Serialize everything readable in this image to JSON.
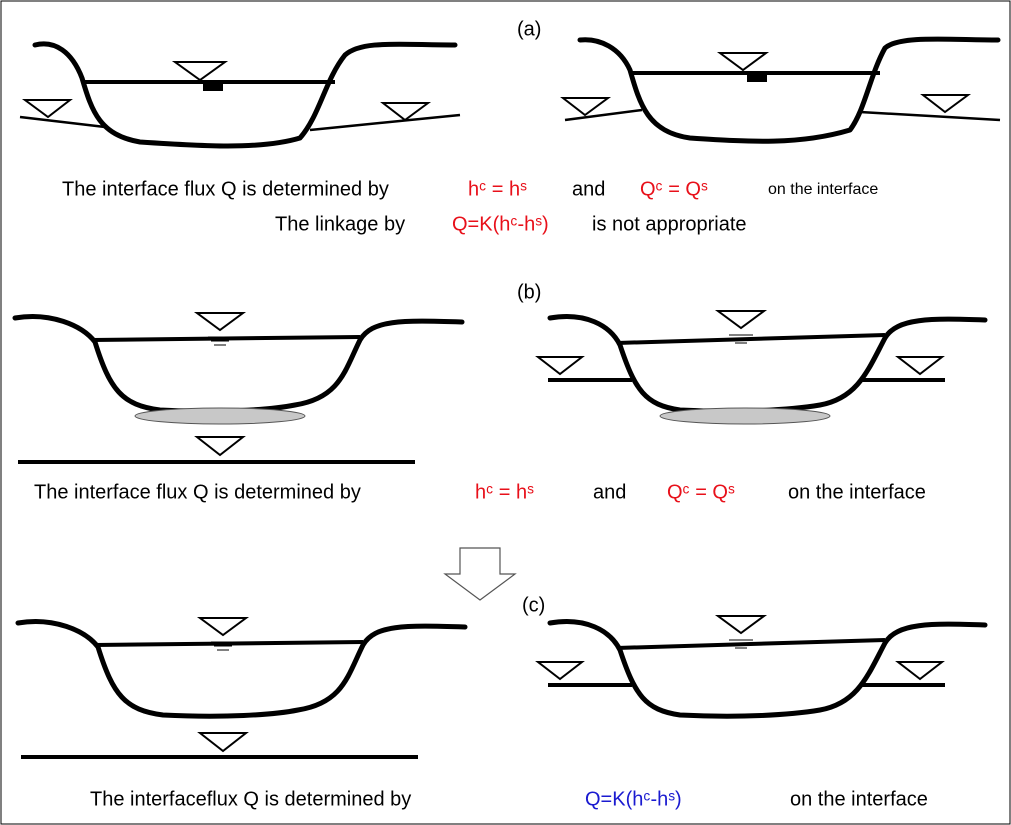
{
  "panels": [
    {
      "label": "(a)",
      "caption": [
        [
          {
            "text": "The interface flux Q is determined by",
            "color": "#000000"
          },
          {
            "text": "hᶜ = hˢ",
            "color": "#e8101a"
          },
          {
            "text": "and",
            "color": "#000000"
          },
          {
            "text": "Qᶜ = Qˢ",
            "color": "#e8101a"
          },
          {
            "text": "on the interface",
            "color": "#000000"
          }
        ],
        [
          {
            "text": "The linkage by",
            "color": "#000000"
          },
          {
            "text": "Q=K(hᶜ-hˢ)",
            "color": "#e8101a"
          },
          {
            "text": "is not appropriate",
            "color": "#000000"
          }
        ]
      ]
    },
    {
      "label": "(b)",
      "caption": [
        [
          {
            "text": "The interface flux Q is determined by",
            "color": "#000000"
          },
          {
            "text": "hᶜ = hˢ",
            "color": "#e8101a"
          },
          {
            "text": "and",
            "color": "#000000"
          },
          {
            "text": "Qᶜ = Qˢ",
            "color": "#e8101a"
          },
          {
            "text": "on the interface",
            "color": "#000000"
          }
        ]
      ]
    },
    {
      "label": "(c)",
      "caption": [
        [
          {
            "text": "The interfaceflux Q is determined by",
            "color": "#000000"
          },
          {
            "text": "Q=K(hᶜ-hˢ)",
            "color": "#1a1ad0"
          },
          {
            "text": "on the interface",
            "color": "#000000"
          }
        ]
      ]
    }
  ]
}
